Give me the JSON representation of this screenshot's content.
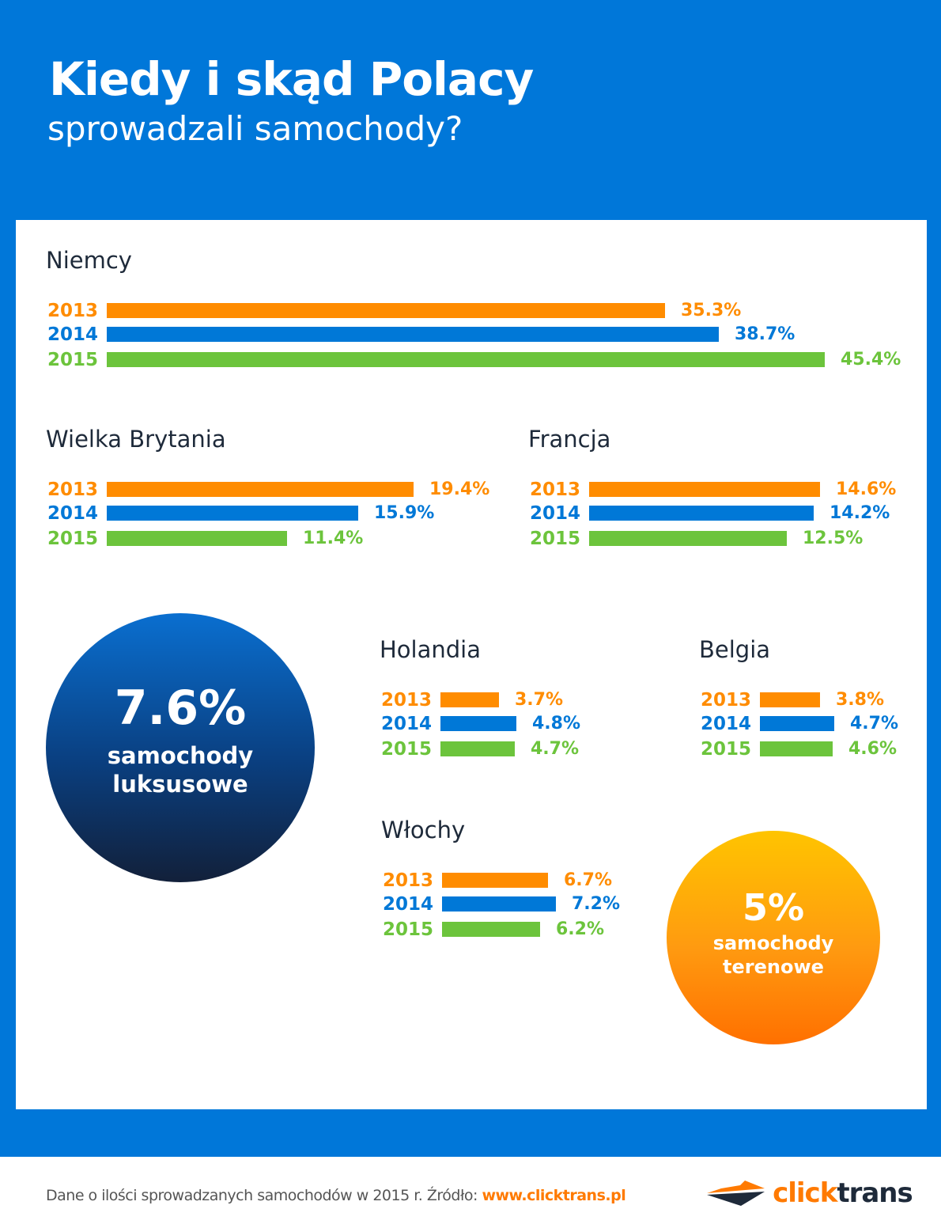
{
  "header": {
    "title": "Kiedy i skąd Polacy",
    "subtitle": "sprowadzali samochody?"
  },
  "colors": {
    "background": "#0077d9",
    "2013": "#ff8c00",
    "2014": "#0078d7",
    "2015": "#6cc43c"
  },
  "chart_data": {
    "type": "bar",
    "orientation": "horizontal",
    "unit": "%",
    "groups": [
      {
        "title": "Niemcy",
        "series": [
          {
            "name": "2013",
            "value": 35.3,
            "label": "35.3%"
          },
          {
            "name": "2014",
            "value": 38.7,
            "label": "38.7%"
          },
          {
            "name": "2015",
            "value": 45.4,
            "label": "45.4%"
          }
        ]
      },
      {
        "title": "Wielka Brytania",
        "series": [
          {
            "name": "2013",
            "value": 19.4,
            "label": "19.4%"
          },
          {
            "name": "2014",
            "value": 15.9,
            "label": "15.9%"
          },
          {
            "name": "2015",
            "value": 11.4,
            "label": "11.4%"
          }
        ]
      },
      {
        "title": "Francja",
        "series": [
          {
            "name": "2013",
            "value": 14.6,
            "label": "14.6%"
          },
          {
            "name": "2014",
            "value": 14.2,
            "label": "14.2%"
          },
          {
            "name": "2015",
            "value": 12.5,
            "label": "12.5%"
          }
        ]
      },
      {
        "title": "Holandia",
        "series": [
          {
            "name": "2013",
            "value": 3.7,
            "label": "3.7%"
          },
          {
            "name": "2014",
            "value": 4.8,
            "label": "4.8%"
          },
          {
            "name": "2015",
            "value": 4.7,
            "label": "4.7%"
          }
        ]
      },
      {
        "title": "Belgia",
        "series": [
          {
            "name": "2013",
            "value": 3.8,
            "label": "3.8%"
          },
          {
            "name": "2014",
            "value": 4.7,
            "label": "4.7%"
          },
          {
            "name": "2015",
            "value": 4.6,
            "label": "4.6%"
          }
        ]
      },
      {
        "title": "Włochy",
        "series": [
          {
            "name": "2013",
            "value": 6.7,
            "label": "6.7%"
          },
          {
            "name": "2014",
            "value": 7.2,
            "label": "7.2%"
          },
          {
            "name": "2015",
            "value": 6.2,
            "label": "6.2%"
          }
        ]
      }
    ]
  },
  "callouts": {
    "luxury": {
      "value": "7.6%",
      "line1": "samochody",
      "line2": "luksusowe"
    },
    "offroad": {
      "value": "5%",
      "line1": "samochody",
      "line2": "terenowe"
    }
  },
  "footer": {
    "text": "Dane o ilości sprowadzanych samochodów w 2015 r. Źródło: ",
    "link": "www.clicktrans.pl",
    "logo": "clicktrans"
  }
}
